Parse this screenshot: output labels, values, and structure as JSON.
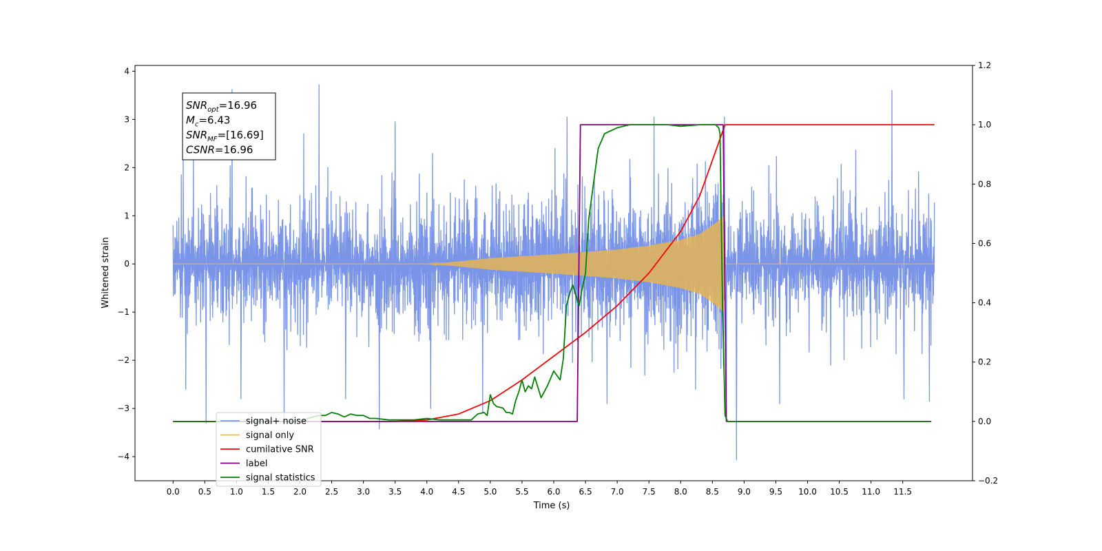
{
  "chart_data": {
    "type": "line",
    "xlabel": "Time (s)",
    "ylabel": "Whitened strain",
    "xlim": [
      -0.6,
      12.6
    ],
    "ylim": [
      -4.5,
      4.12
    ],
    "ylim_right": [
      -0.2,
      1.2
    ],
    "xticks": [
      "0.0",
      "0.5",
      "1.0",
      "1.5",
      "2.0",
      "2.5",
      "3.0",
      "3.5",
      "4.0",
      "4.5",
      "5.0",
      "5.5",
      "6.0",
      "6.5",
      "7.0",
      "7.5",
      "8.0",
      "8.5",
      "9.0",
      "9.5",
      "10.0",
      "10.5",
      "11.0",
      "11.5"
    ],
    "yticks_left": [
      "−4",
      "−3",
      "−2",
      "−1",
      "0",
      "1",
      "2",
      "3",
      "4"
    ],
    "yticks_right": [
      "−0.2",
      "0.0",
      "0.2",
      "0.4",
      "0.6",
      "0.8",
      "1.0",
      "1.2"
    ],
    "grid": false,
    "legend_position": "lower-left",
    "annotation": {
      "lines": [
        {
          "sym": "SNR",
          "sub": "opt",
          "rest": "=16.96"
        },
        {
          "sym": "M",
          "sub": "c",
          "rest": "=6.43"
        },
        {
          "sym": "SNR",
          "sub": "MF",
          "rest": "=[16.69]"
        },
        {
          "sym": "CSNR",
          "sub": "",
          "rest": "=16.96"
        }
      ]
    },
    "series": [
      {
        "name": "signal+ noise",
        "axis": "left",
        "color": "#7a95e8",
        "description_range": [
          0.0,
          12.0
        ],
        "typical_amplitude": 1.3,
        "spikes": [
          [
            0.13,
            1.85
          ],
          [
            0.2,
            -2.6
          ],
          [
            0.52,
            -3.3
          ],
          [
            0.93,
            3.62
          ],
          [
            1.07,
            -2.8
          ],
          [
            1.75,
            -3.2
          ],
          [
            2.06,
            2.7
          ],
          [
            2.3,
            3.72
          ],
          [
            2.72,
            -2.8
          ],
          [
            3.25,
            -3.42
          ],
          [
            3.5,
            2.95
          ],
          [
            4.06,
            -3.0
          ],
          [
            4.88,
            -3.1
          ],
          [
            6.21,
            3.05
          ],
          [
            6.84,
            -2.9
          ],
          [
            7.58,
            3.05
          ],
          [
            8.69,
            3.05
          ],
          [
            8.72,
            -3.05
          ],
          [
            8.88,
            -4.07
          ],
          [
            9.56,
            -2.9
          ],
          [
            11.33,
            3.6
          ],
          [
            11.52,
            -2.8
          ],
          [
            11.92,
            -2.85
          ]
        ]
      },
      {
        "name": "signal only",
        "axis": "left",
        "color": "#f5b942",
        "envelope": {
          "x": [
            0.0,
            4.0,
            4.5,
            5.0,
            6.0,
            7.0,
            7.5,
            8.0,
            8.3,
            8.55,
            8.68,
            8.7,
            12.0
          ],
          "amp": [
            0.0,
            0.0,
            0.05,
            0.12,
            0.2,
            0.3,
            0.38,
            0.5,
            0.62,
            0.85,
            1.0,
            0.0,
            0.0
          ]
        }
      },
      {
        "name": "cumilative SNR",
        "axis": "right",
        "color": "#ff0000",
        "x": [
          0.0,
          3.5,
          4.0,
          4.5,
          5.0,
          5.5,
          6.0,
          6.5,
          7.0,
          7.5,
          8.0,
          8.3,
          8.5,
          8.65,
          8.7,
          12.0
        ],
        "values": [
          0.0,
          0.0,
          0.005,
          0.025,
          0.07,
          0.14,
          0.22,
          0.3,
          0.39,
          0.5,
          0.64,
          0.76,
          0.88,
          0.97,
          1.0,
          1.0
        ]
      },
      {
        "name": "label",
        "axis": "right",
        "color": "#800080",
        "x": [
          0.0,
          6.37,
          6.42,
          8.67,
          8.72,
          11.95
        ],
        "values": [
          0.0,
          0.0,
          1.0,
          1.0,
          0.0,
          0.0
        ]
      },
      {
        "name": "signal statistics",
        "axis": "right",
        "color": "#008000",
        "x": [
          0.0,
          2.0,
          2.2,
          2.3,
          2.4,
          2.5,
          2.6,
          2.7,
          2.8,
          2.9,
          3.0,
          3.1,
          3.2,
          3.4,
          3.6,
          3.8,
          4.0,
          4.2,
          4.5,
          4.7,
          4.8,
          4.9,
          4.95,
          5.0,
          5.05,
          5.1,
          5.2,
          5.25,
          5.3,
          5.35,
          5.4,
          5.45,
          5.5,
          5.55,
          5.6,
          5.65,
          5.7,
          5.8,
          5.9,
          6.0,
          6.1,
          6.15,
          6.2,
          6.25,
          6.3,
          6.4,
          6.45,
          6.5,
          6.55,
          6.6,
          6.7,
          6.8,
          6.9,
          7.0,
          7.1,
          7.2,
          7.3,
          7.5,
          7.8,
          8.0,
          8.3,
          8.5,
          8.55,
          8.6,
          8.62,
          8.66,
          8.7,
          8.74,
          11.95
        ],
        "values": [
          0.0,
          0.0,
          0.015,
          0.02,
          0.02,
          0.03,
          0.025,
          0.015,
          0.025,
          0.02,
          0.02,
          0.01,
          0.01,
          0.005,
          0.005,
          0.005,
          0.01,
          0.005,
          0.005,
          0.005,
          0.025,
          0.03,
          0.02,
          0.09,
          0.06,
          0.05,
          0.045,
          0.03,
          0.03,
          0.025,
          0.07,
          0.1,
          0.14,
          0.1,
          0.12,
          0.11,
          0.15,
          0.08,
          0.12,
          0.17,
          0.14,
          0.21,
          0.39,
          0.43,
          0.46,
          0.39,
          0.45,
          0.5,
          0.68,
          0.76,
          0.92,
          0.97,
          0.98,
          0.99,
          0.995,
          1.0,
          1.0,
          1.0,
          1.0,
          0.995,
          1.0,
          1.0,
          1.0,
          0.99,
          0.97,
          0.4,
          0.02,
          0.0,
          0.0
        ]
      }
    ]
  }
}
